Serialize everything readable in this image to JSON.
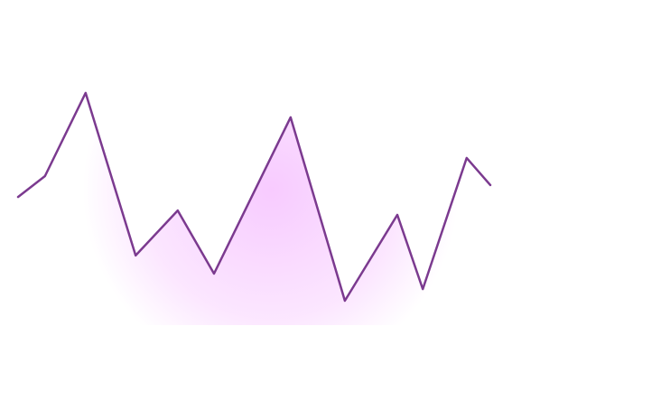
{
  "chart_data": {
    "type": "area",
    "x": [
      0,
      5.7,
      14.3,
      24.9,
      33.8,
      41.5,
      57.7,
      69.2,
      80.3,
      85.7,
      95,
      100
    ],
    "values": [
      47.3,
      55,
      85.7,
      25.7,
      42.3,
      19,
      76.7,
      9,
      40.7,
      13.3,
      61.7,
      51.7
    ],
    "xlim": [
      0,
      100
    ],
    "ylim": [
      0,
      100
    ],
    "color": "#7b3a8f",
    "fill": "#f7c8ff"
  }
}
